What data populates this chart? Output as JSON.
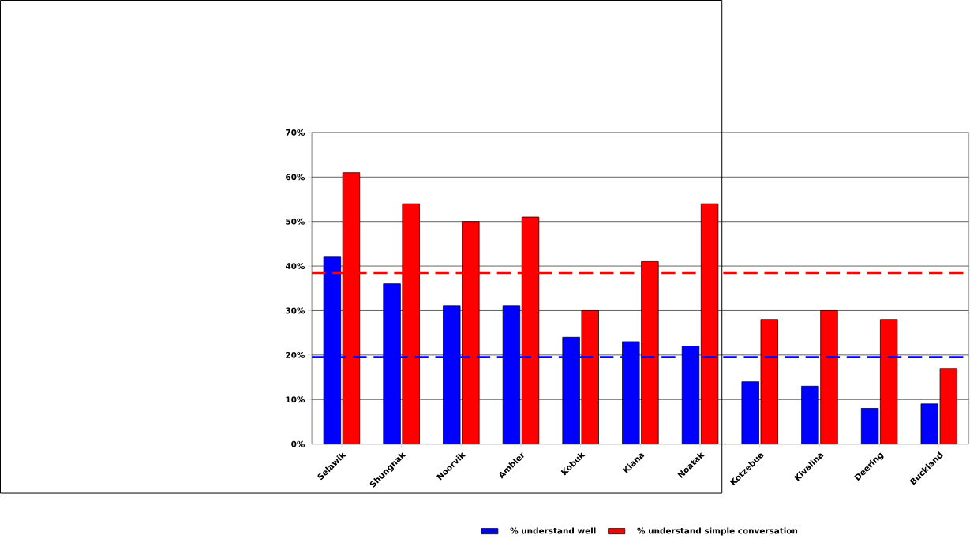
{
  "chart_data": {
    "type": "bar",
    "categories": [
      "Selawik",
      "Shungnak",
      "Noorvik",
      "Ambler",
      "Kobuk",
      "Kiana",
      "Noatak",
      "Kotzebue",
      "Kivalina",
      "Deering",
      "Buckland"
    ],
    "series": [
      {
        "name": "% understand well",
        "color": "#0000ff",
        "values": [
          42,
          36,
          31,
          31,
          24,
          23,
          22,
          14,
          13,
          8,
          9
        ]
      },
      {
        "name": "% understand simple conversation",
        "color": "#ff0000",
        "values": [
          61,
          54,
          50,
          51,
          30,
          41,
          54,
          28,
          30,
          28,
          17
        ]
      }
    ],
    "ylim": [
      0,
      70
    ],
    "yticks": [
      {
        "value": 0,
        "label": "0%"
      },
      {
        "value": 10,
        "label": "10%"
      },
      {
        "value": 20,
        "label": "20%"
      },
      {
        "value": 30,
        "label": "30%"
      },
      {
        "value": 40,
        "label": "40%"
      },
      {
        "value": 50,
        "label": "50%"
      },
      {
        "value": 60,
        "label": "60%"
      },
      {
        "value": 70,
        "label": "70%"
      }
    ],
    "ref_lines": [
      {
        "axis": "y",
        "value": 38.4,
        "color": "#ff0000",
        "line_style": "dashed"
      },
      {
        "axis": "y",
        "value": 19.5,
        "color": "#0000ff",
        "line_style": "dashed"
      }
    ],
    "grid": "y",
    "legend": "bottom"
  }
}
